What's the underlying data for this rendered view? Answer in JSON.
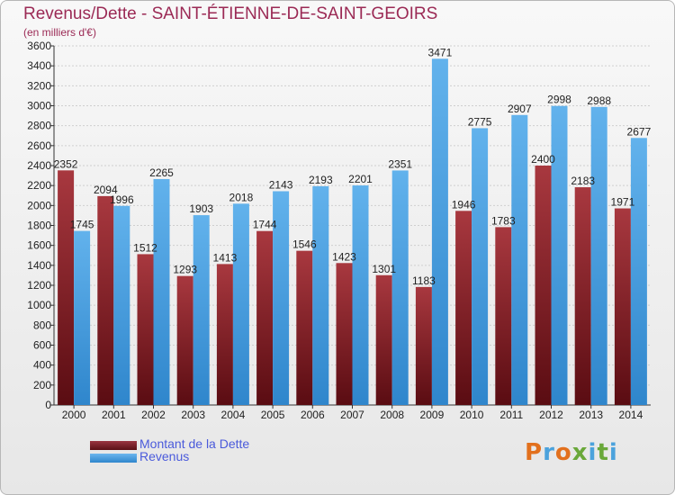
{
  "chart_data": {
    "type": "bar",
    "title": "Revenus/Dette - SAINT-ÉTIENNE-DE-SAINT-GEOIRS",
    "subtitle": "(en milliers d'€)",
    "categories": [
      "2000",
      "2001",
      "2002",
      "2003",
      "2004",
      "2005",
      "2006",
      "2007",
      "2008",
      "2009",
      "2010",
      "2011",
      "2012",
      "2013",
      "2014"
    ],
    "series": [
      {
        "name": "Montant de la Dette",
        "color": "#7b1f26",
        "values": [
          2352,
          2094,
          1512,
          1293,
          1413,
          1744,
          1546,
          1423,
          1301,
          1183,
          1946,
          1783,
          2400,
          2183,
          1971
        ]
      },
      {
        "name": "Revenus",
        "color": "#4da2e2",
        "values": [
          1745,
          1996,
          2265,
          1903,
          2018,
          2143,
          2193,
          2201,
          2351,
          3471,
          2775,
          2907,
          2998,
          2988,
          2677
        ]
      }
    ],
    "ylim": [
      0,
      3600
    ],
    "ytick_step": 200,
    "grid": true,
    "legend": "bottom-left"
  },
  "logo": {
    "text": "Proxiti"
  }
}
